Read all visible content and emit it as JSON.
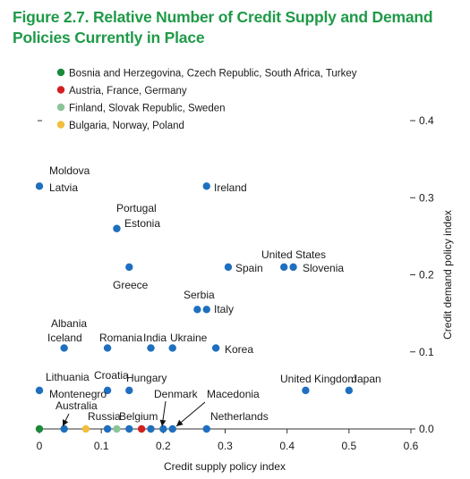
{
  "figure": {
    "title_line1": "Figure 2.7.  Relative Number of Credit Supply and Demand",
    "title_line2": "Policies Currently in Place"
  },
  "colors": {
    "title": "#1f9a48",
    "blue": "#1f6fbf",
    "green": "#1a8a3a",
    "red": "#d41f1f",
    "lightgreen": "#8cc49a",
    "yellow": "#f0bf3c"
  },
  "chart_data": {
    "type": "scatter",
    "xlabel": "Credit supply policy index",
    "ylabel": "Credit demand policy index",
    "xlim": [
      0,
      0.6
    ],
    "ylim": [
      0,
      0.4
    ],
    "xticks": [
      "0",
      "0.1",
      "0.2",
      "0.3",
      "0.4",
      "0.5",
      "0.6"
    ],
    "yticks": [
      "0.0",
      "0.1",
      "0.2",
      "0.3",
      "0.4"
    ],
    "grid": false,
    "legend_position": "top-left",
    "legend": [
      {
        "label": "Bosnia and Herzegovina, Czech Republic, South Africa, Turkey",
        "color": "green"
      },
      {
        "label": "Austria, France, Germany",
        "color": "red"
      },
      {
        "label": "Finland, Slovak Republic, Sweden",
        "color": "lightgreen"
      },
      {
        "label": "Bulgaria, Norway, Poland",
        "color": "yellow"
      }
    ],
    "points": [
      {
        "label": "Moldova",
        "x": 0.0,
        "y": 0.315,
        "color": "blue"
      },
      {
        "label": "Latvia",
        "x": 0.0,
        "y": 0.315,
        "color": "blue"
      },
      {
        "label": "Ireland",
        "x": 0.27,
        "y": 0.315,
        "color": "blue"
      },
      {
        "label": "Portugal",
        "x": 0.125,
        "y": 0.26,
        "color": "blue"
      },
      {
        "label": "Estonia",
        "x": 0.125,
        "y": 0.26,
        "color": "blue"
      },
      {
        "label": "Greece",
        "x": 0.145,
        "y": 0.21,
        "color": "blue"
      },
      {
        "label": "Spain",
        "x": 0.305,
        "y": 0.21,
        "color": "blue"
      },
      {
        "label": "United States",
        "x": 0.395,
        "y": 0.21,
        "color": "blue"
      },
      {
        "label": "Slovenia",
        "x": 0.41,
        "y": 0.21,
        "color": "blue"
      },
      {
        "label": "Serbia",
        "x": 0.255,
        "y": 0.155,
        "color": "blue"
      },
      {
        "label": "Italy",
        "x": 0.27,
        "y": 0.155,
        "color": "blue"
      },
      {
        "label": "Albania",
        "x": 0.04,
        "y": 0.105,
        "color": "blue"
      },
      {
        "label": "Iceland",
        "x": 0.04,
        "y": 0.105,
        "color": "blue"
      },
      {
        "label": "Romania",
        "x": 0.11,
        "y": 0.105,
        "color": "blue"
      },
      {
        "label": "India",
        "x": 0.18,
        "y": 0.105,
        "color": "blue"
      },
      {
        "label": "Ukraine",
        "x": 0.215,
        "y": 0.105,
        "color": "blue"
      },
      {
        "label": "Korea",
        "x": 0.285,
        "y": 0.105,
        "color": "blue"
      },
      {
        "label": "Lithuania",
        "x": 0.0,
        "y": 0.05,
        "color": "blue"
      },
      {
        "label": "Croatia",
        "x": 0.11,
        "y": 0.05,
        "color": "blue"
      },
      {
        "label": "Hungary",
        "x": 0.145,
        "y": 0.05,
        "color": "blue"
      },
      {
        "label": "United Kingdom",
        "x": 0.43,
        "y": 0.05,
        "color": "blue"
      },
      {
        "label": "Japan",
        "x": 0.5,
        "y": 0.05,
        "color": "blue"
      },
      {
        "label": "Montenegro",
        "x": 0.0,
        "y": 0.05,
        "color": "blue"
      },
      {
        "label": "Australia",
        "x": 0.04,
        "y": 0.0,
        "color": "blue"
      },
      {
        "label": "Russia",
        "x": 0.11,
        "y": 0.0,
        "color": "blue"
      },
      {
        "label": "Belgium",
        "x": 0.18,
        "y": 0.0,
        "color": "blue"
      },
      {
        "label": "Denmark",
        "x": 0.2,
        "y": 0.0,
        "color": "blue"
      },
      {
        "label": "Macedonia",
        "x": 0.215,
        "y": 0.0,
        "color": "blue"
      },
      {
        "label": "Netherlands",
        "x": 0.27,
        "y": 0.0,
        "color": "blue"
      },
      {
        "label": "",
        "x": 0.0,
        "y": 0.0,
        "color": "green"
      },
      {
        "label": "",
        "x": 0.075,
        "y": 0.0,
        "color": "yellow"
      },
      {
        "label": "",
        "x": 0.125,
        "y": 0.0,
        "color": "lightgreen"
      },
      {
        "label": "",
        "x": 0.165,
        "y": 0.0,
        "color": "red"
      },
      {
        "label": "",
        "x": 0.145,
        "y": 0.0,
        "color": "blue"
      }
    ]
  }
}
